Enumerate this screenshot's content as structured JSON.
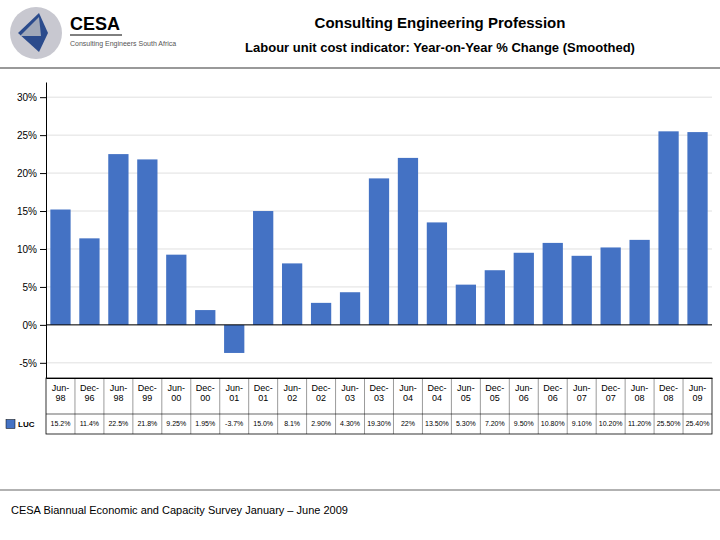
{
  "chart_data": {
    "type": "bar",
    "title": "Consulting Engineering Profession",
    "subtitle": "Labour unit cost indicator: Year-on-Year % Change (Smoothed)",
    "annotations": [
      "CESA",
      "Consulting Engineers South Africa",
      "CESA Biannual Economic and Capacity Survey January – June 2009"
    ],
    "categories": [
      "Jun-98",
      "Dec-96",
      "Jun-98",
      "Dec-99",
      "Jun-00",
      "Dec-00",
      "Jun-01",
      "Dec-01",
      "Jun-02",
      "Dec-02",
      "Jun-03",
      "Dec-03",
      "Jun-04",
      "Dec-04",
      "Jun-05",
      "Dec-05",
      "Jun-06",
      "Dec-06",
      "Jun-07",
      "Dec-07",
      "Jun-08",
      "Dec-08",
      "Jun-09"
    ],
    "series": [
      {
        "name": "LUC",
        "color": "#4472C4",
        "values": [
          15.2,
          11.4,
          22.5,
          21.8,
          9.25,
          1.95,
          -3.7,
          15.0,
          8.1,
          2.9,
          4.3,
          19.3,
          22.0,
          13.5,
          5.3,
          7.2,
          9.5,
          10.8,
          9.1,
          10.2,
          11.2,
          25.5,
          25.4
        ],
        "value_labels": [
          "15.2%",
          "11.4%",
          "22.5%",
          "21.8%",
          "9.25%",
          "1.95%",
          "-3.7%",
          "15.0%",
          "8.1%",
          "2.90%",
          "4.30%",
          "19.30%",
          "22%",
          "13.50%",
          "5.30%",
          "7.20%",
          "9.50%",
          "10.80%",
          "9.10%",
          "10.20%",
          "11.20%",
          "25.50%",
          "25.40%"
        ]
      }
    ],
    "ylim": [
      -7,
      32
    ],
    "yticks": [
      {
        "value": -5,
        "label": "-5%"
      },
      {
        "value": 0,
        "label": "0%"
      },
      {
        "value": 5,
        "label": "5%"
      },
      {
        "value": 10,
        "label": "10%"
      },
      {
        "value": 15,
        "label": "15%"
      },
      {
        "value": 20,
        "label": "20%"
      },
      {
        "value": 25,
        "label": "25%"
      },
      {
        "value": 30,
        "label": "30%"
      }
    ],
    "grid": true,
    "legend": "bottom",
    "data_labels": true
  }
}
